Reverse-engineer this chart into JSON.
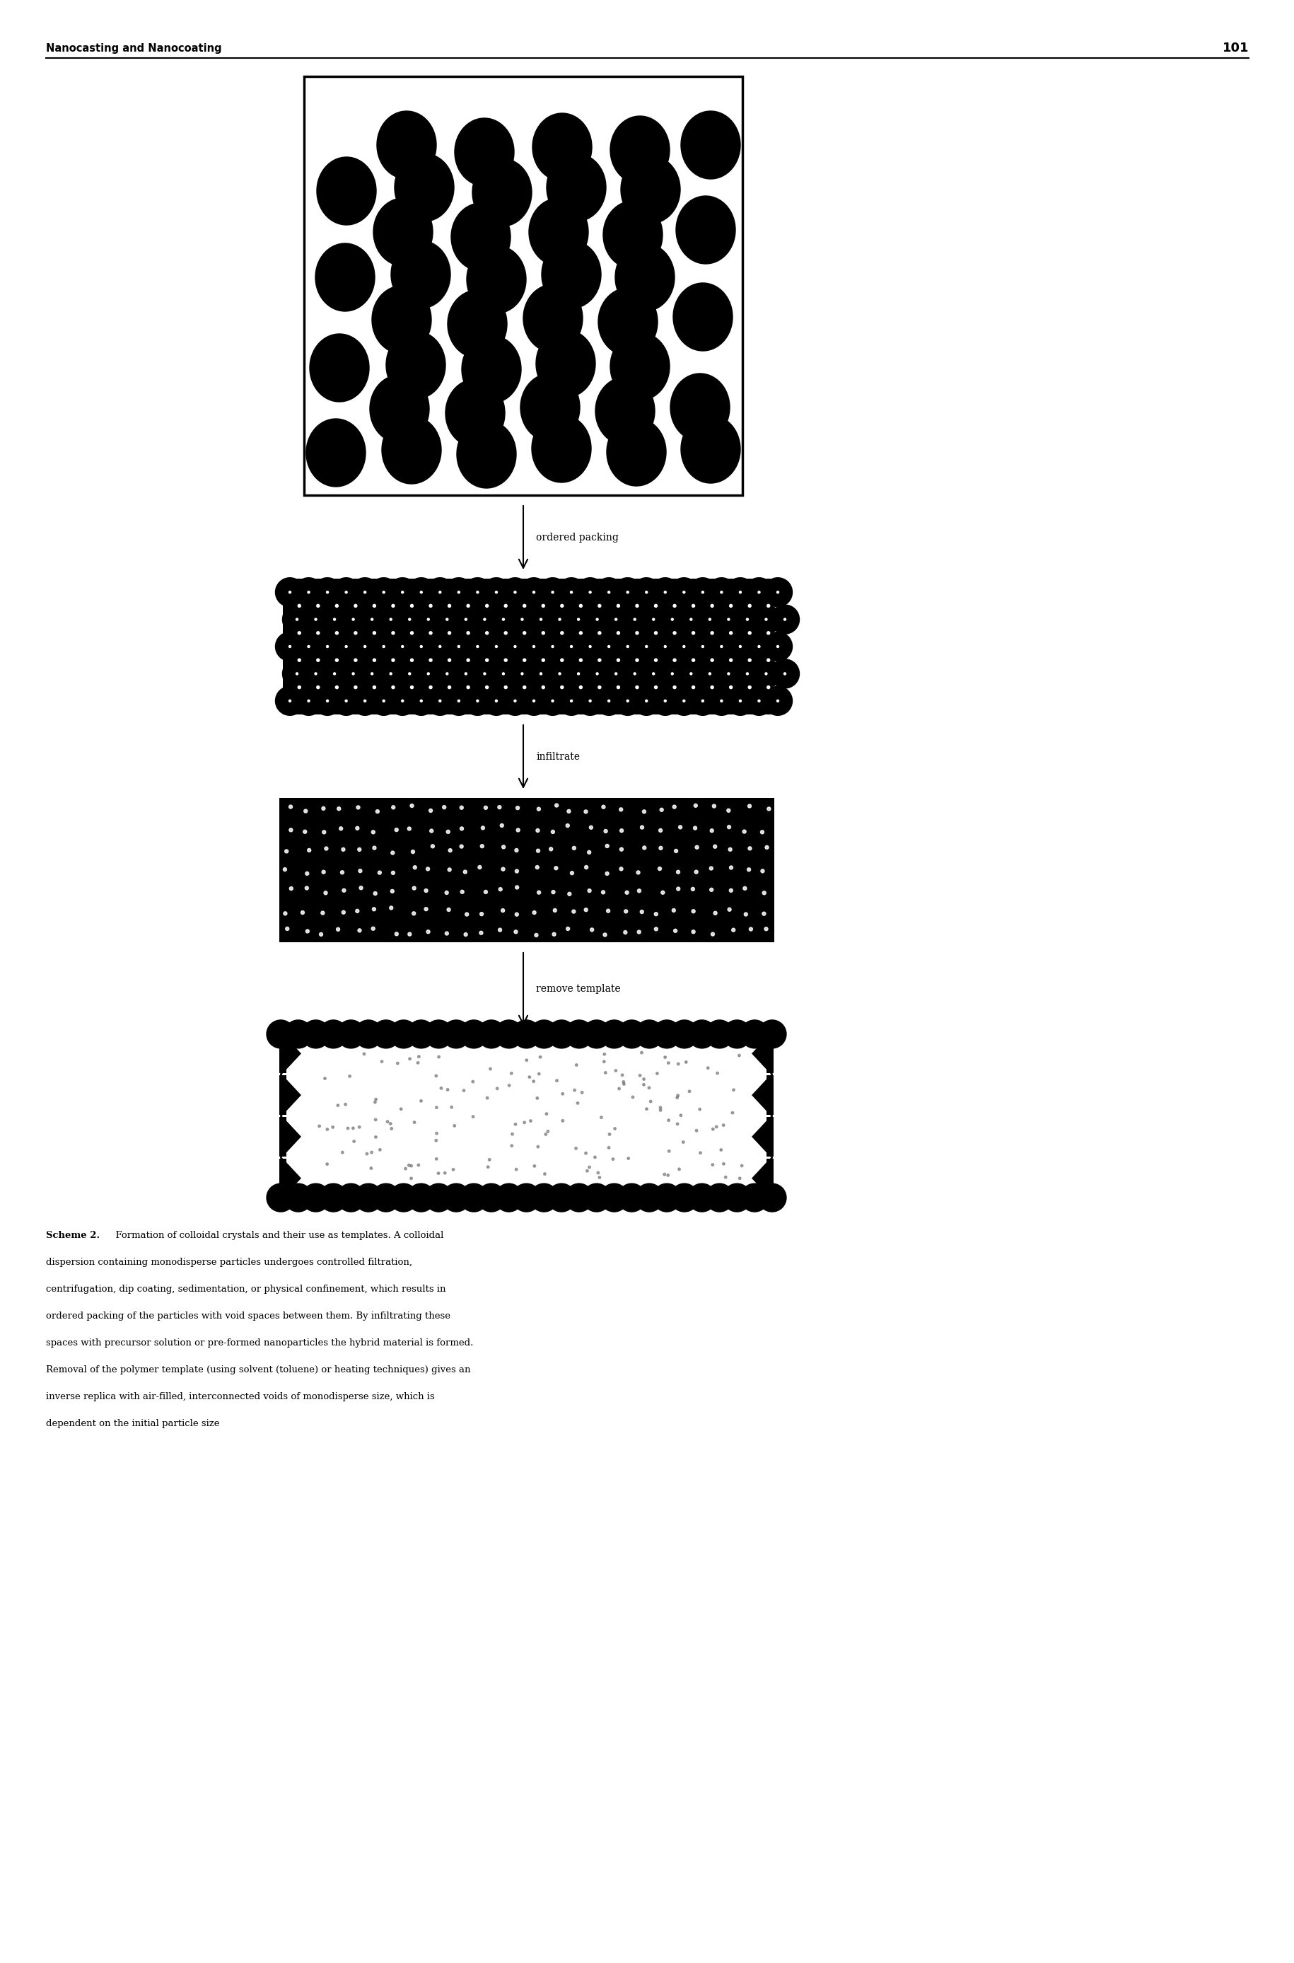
{
  "page_width": 18.31,
  "page_height": 27.75,
  "bg_color": "#ffffff",
  "header_text": "Nanocasting and Nanocoating",
  "header_page": "101",
  "label_ordered_packing": "ordered packing",
  "label_infiltrate": "infiltrate",
  "label_remove_template": "remove template",
  "caption_bold": "Scheme 2.",
  "caption_rest": "  Formation of colloidal crystals and their use as templates. A colloidal dispersion containing monodisperse particles undergoes controlled filtration, centrifugation, dip coating, sedimentation, or physical confinement, which results in ordered packing of the particles with void spaces between them. By infiltrating these spaces with precursor solution or pre-formed nanoparticles the hybrid material is formed. Removal of the polymer template (using solvent (toluene) or heating techniques) gives an inverse replica with air-filled, interconnected voids of monodisperse size, which is dependent on the initial particle size"
}
